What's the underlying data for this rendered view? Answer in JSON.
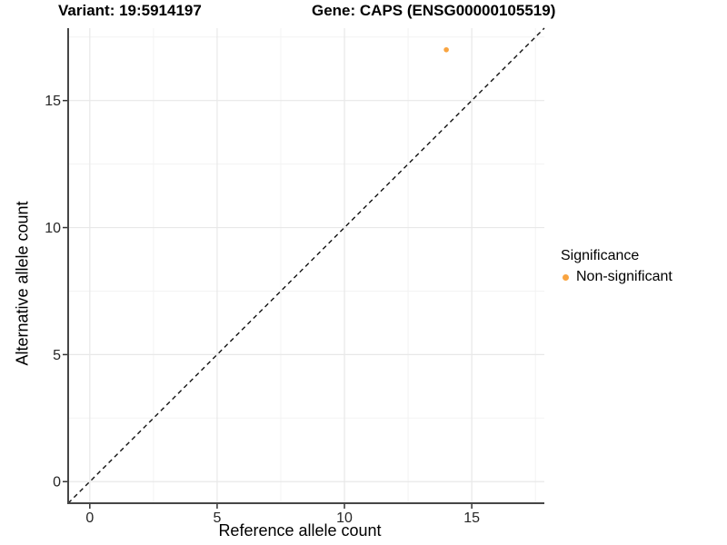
{
  "titles": {
    "variant": "Variant: 19:5914197",
    "gene": "Gene: CAPS (ENSG00000105519)"
  },
  "chart_data": {
    "type": "scatter",
    "title": "Variant: 19:5914197 — Gene: CAPS (ENSG00000105519)",
    "xlabel": "Reference allele count",
    "ylabel": "Alternative allele count",
    "xlim": [
      -0.85,
      17.85
    ],
    "ylim": [
      -0.85,
      17.85
    ],
    "xticks": [
      0,
      5,
      10,
      15
    ],
    "yticks": [
      0,
      5,
      10,
      15
    ],
    "minor_gridlines_x": [
      2.5,
      7.5,
      12.5,
      17.5
    ],
    "minor_gridlines_y": [
      2.5,
      7.5,
      12.5,
      17.5
    ],
    "grid": true,
    "identity_line": {
      "style": "dashed",
      "equation": "y = x"
    },
    "series": [
      {
        "name": "Non-significant",
        "color": "#F9A440",
        "points": [
          {
            "x": 14,
            "y": 17
          }
        ]
      }
    ],
    "legend": {
      "title": "Significance",
      "position": "right",
      "items": [
        {
          "label": "Non-significant",
          "color": "#F9A440"
        }
      ]
    },
    "colors": {
      "point": "#F9A440",
      "axis_line": "#464646",
      "tick_mark": "#333333",
      "tick_label": "#262626",
      "grid_major": "#E8E8E8",
      "grid_minor": "#F3F3F3",
      "identity_line": "#111111",
      "background": "#FFFFFF"
    }
  }
}
